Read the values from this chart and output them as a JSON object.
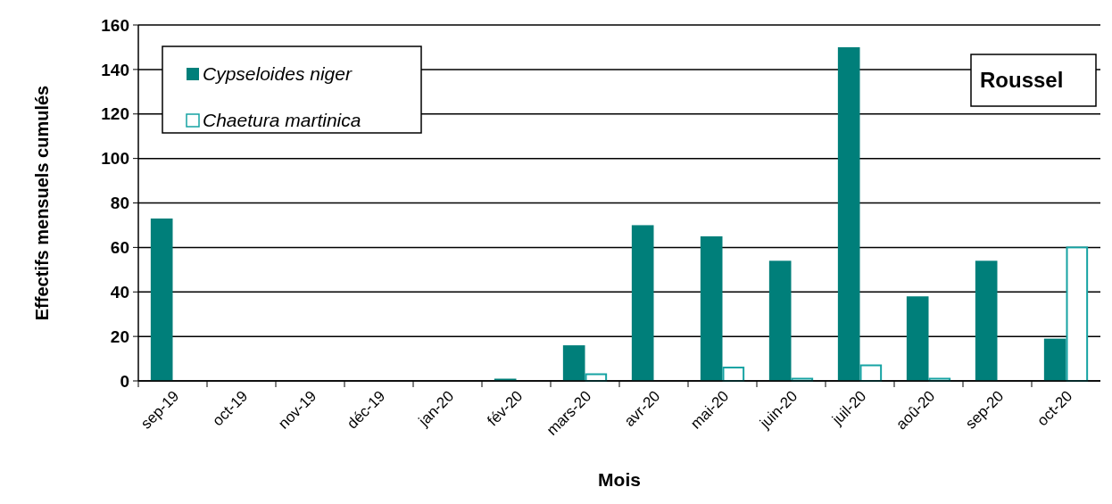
{
  "chart_data": {
    "type": "bar",
    "categories": [
      "sep-19",
      "oct-19",
      "nov-19",
      "déc-19",
      "jan-20",
      "fév-20",
      "mars-20",
      "avr-20",
      "mai-20",
      "juin-20",
      "juil-20",
      "aoû-20",
      "sep-20",
      "oct-20"
    ],
    "series": [
      {
        "name": "Cypseloides niger",
        "color": "#007f7a",
        "values": [
          73,
          0,
          0,
          0,
          0,
          1,
          16,
          70,
          65,
          54,
          150,
          38,
          54,
          19
        ]
      },
      {
        "name": "Chaetura martinica",
        "color": "#16a3a3",
        "values": [
          0,
          0,
          0,
          0,
          0,
          0,
          3,
          0,
          6,
          1,
          7,
          1,
          0,
          60
        ]
      }
    ],
    "xlabel": "Mois",
    "ylabel": "Effectifs mensuels cumulés",
    "annotations": [
      "Roussel"
    ],
    "ylim": [
      0,
      160
    ],
    "yticks": [
      0,
      20,
      40,
      60,
      80,
      100,
      120,
      140,
      160
    ],
    "grid": "y",
    "legend": "top left"
  }
}
